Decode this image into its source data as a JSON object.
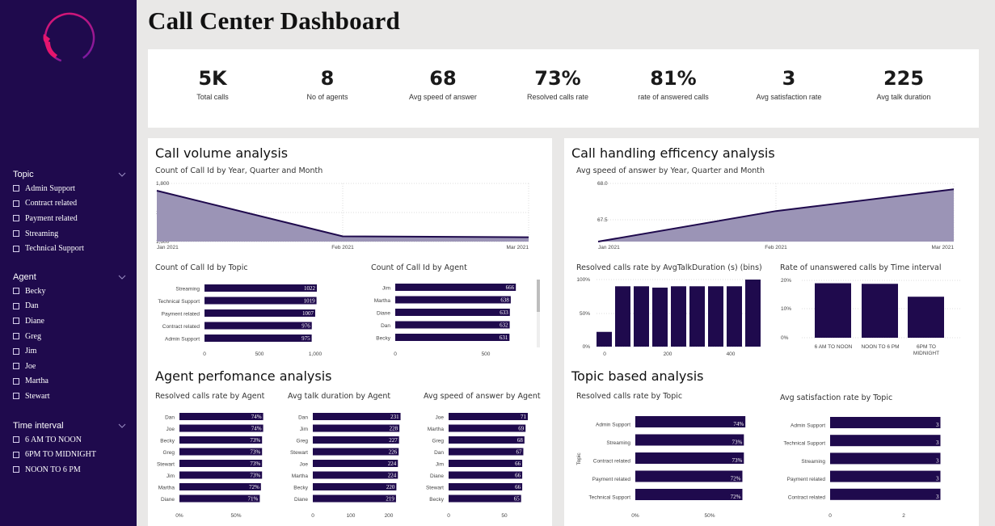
{
  "page": {
    "title": "Call Center Dashboard"
  },
  "colors": {
    "sidebar": "#1f0a4d",
    "bar": "#1f0a4d",
    "area": "#9b94b6",
    "line": "#1f0a4d",
    "logo_start": "#e6156e",
    "logo_end": "#6a1aa8"
  },
  "sidebar": {
    "logo_icon": "phone-ring-logo",
    "slicers": [
      {
        "title": "Topic",
        "items": [
          "Admin Support",
          "Contract related",
          "Payment related",
          "Streaming",
          "Technical Support"
        ]
      },
      {
        "title": "Agent",
        "items": [
          "Becky",
          "Dan",
          "Diane",
          "Greg",
          "Jim",
          "Joe",
          "Martha",
          "Stewart"
        ]
      },
      {
        "title": "Time interval",
        "items": [
          "6 AM TO NOON",
          "6PM TO MIDNIGHT",
          "NOON TO 6 PM"
        ]
      }
    ]
  },
  "kpis": [
    {
      "value": "5K",
      "label": "Total calls"
    },
    {
      "value": "8",
      "label": "No of agents"
    },
    {
      "value": "68",
      "label": "Avg speed of answer"
    },
    {
      "value": "73%",
      "label": "Resolved calls rate"
    },
    {
      "value": "81%",
      "label": "rate of answered calls"
    },
    {
      "value": "3",
      "label": "Avg satisfaction rate"
    },
    {
      "value": "225",
      "label": "Avg talk duration"
    }
  ],
  "sections": {
    "volume": "Call volume analysis",
    "efficiency": "Call handling efficency analysis",
    "agent": "Agent perfomance analysis",
    "topic": "Topic based analysis"
  },
  "chart_data": [
    {
      "id": "volume-trend",
      "type": "area",
      "title": "Count of Call Id by Year, Quarter and Month",
      "x": [
        "Jan 2021",
        "Feb 2021",
        "Mar 2021"
      ],
      "values": [
        1775,
        1618,
        1615
      ],
      "ylim": [
        1600,
        1800
      ],
      "yticks": [
        "1,800",
        "1,700",
        "1,600"
      ]
    },
    {
      "id": "calls-by-topic",
      "type": "bar",
      "title": "Count of Call Id by Topic",
      "categories": [
        "Streaming",
        "Technical Support",
        "Payment related",
        "Contract related",
        "Admin Support"
      ],
      "values": [
        1022,
        1019,
        1007,
        976,
        975
      ],
      "labels": [
        "1022",
        "1019",
        "1007",
        "976",
        "975"
      ],
      "xlim": [
        0,
        1000
      ],
      "xticks": [
        "0",
        "500",
        "1,000"
      ]
    },
    {
      "id": "calls-by-agent",
      "type": "bar",
      "title": "Count of Call Id by Agent",
      "categories": [
        "Jim",
        "Martha",
        "Diane",
        "Dan",
        "Becky"
      ],
      "values": [
        666,
        638,
        633,
        632,
        631
      ],
      "labels": [
        "666",
        "638",
        "633",
        "632",
        "631"
      ],
      "xlim": [
        0,
        600
      ],
      "xticks": [
        "0",
        "500"
      ]
    },
    {
      "id": "speed-trend",
      "type": "area",
      "title": "Avg speed of answer by Year, Quarter and Month",
      "x": [
        "Jan 2021",
        "Feb 2021",
        "Mar 2021"
      ],
      "values": [
        67.2,
        67.62,
        67.92
      ],
      "ylim": [
        67.2,
        68.0
      ],
      "yticks": [
        "68.0",
        "67.5"
      ]
    },
    {
      "id": "resolved-by-duration",
      "type": "bar",
      "title": "Resolved calls rate by AvgTalkDuration (s) (bins)",
      "x": [
        0,
        50,
        100,
        150,
        200,
        250,
        300,
        350,
        400
      ],
      "values": [
        0.22,
        0.9,
        0.9,
        0.88,
        0.9,
        0.9,
        0.9,
        0.9,
        1.0
      ],
      "yticks": [
        "100%",
        "50%",
        "0%"
      ],
      "xticks": [
        "0",
        "200",
        "400"
      ]
    },
    {
      "id": "unanswered-by-interval",
      "type": "bar",
      "title": "Rate of unanswered calls by Time interval",
      "categories": [
        "6 AM TO NOON",
        "NOON TO 6 PM",
        "6PM TO MIDNIGHT"
      ],
      "values": [
        0.19,
        0.188,
        0.143
      ],
      "yticks": [
        "20%",
        "10%",
        "0%"
      ]
    },
    {
      "id": "resolved-by-agent",
      "type": "bar",
      "title": "Resolved calls rate by Agent",
      "categories": [
        "Dan",
        "Joe",
        "Becky",
        "Greg",
        "Stewart",
        "Jim",
        "Martha",
        "Diane"
      ],
      "values": [
        0.74,
        0.74,
        0.73,
        0.73,
        0.73,
        0.73,
        0.72,
        0.71
      ],
      "labels": [
        "74%",
        "74%",
        "73%",
        "73%",
        "73%",
        "73%",
        "72%",
        "71%"
      ],
      "xticks": [
        "0%",
        "50%"
      ]
    },
    {
      "id": "talk-by-agent",
      "type": "bar",
      "title": "Avg talk duration by Agent",
      "categories": [
        "Dan",
        "Jim",
        "Greg",
        "Stewart",
        "Joe",
        "Martha",
        "Becky",
        "Diane"
      ],
      "values": [
        231,
        228,
        227,
        226,
        224,
        224,
        220,
        219
      ],
      "labels": [
        "231",
        "228",
        "227",
        "226",
        "224",
        "224",
        "220",
        "219"
      ],
      "xticks": [
        "0",
        "100",
        "200"
      ]
    },
    {
      "id": "speed-by-agent",
      "type": "bar",
      "title": "Avg speed of answer by Agent",
      "categories": [
        "Joe",
        "Martha",
        "Greg",
        "Dan",
        "Jim",
        "Diane",
        "Stewart",
        "Becky"
      ],
      "values": [
        71,
        69,
        68,
        67,
        66,
        66,
        66,
        65
      ],
      "labels": [
        "71",
        "69",
        "68",
        "67",
        "66",
        "66",
        "66",
        "65"
      ],
      "xticks": [
        "0",
        "50"
      ]
    },
    {
      "id": "resolved-by-topic",
      "type": "bar",
      "title": "Resolved calls rate by Topic",
      "ylabel": "Topic",
      "categories": [
        "Admin Support",
        "Streaming",
        "Contract related",
        "Payment related",
        "Technical Support"
      ],
      "values": [
        0.74,
        0.73,
        0.73,
        0.72,
        0.72
      ],
      "labels": [
        "74%",
        "73%",
        "73%",
        "72%",
        "72%"
      ],
      "xticks": [
        "0%",
        "50%"
      ]
    },
    {
      "id": "satisfaction-by-topic",
      "type": "bar",
      "title": "Avg satisfaction rate by Topic",
      "categories": [
        "Admin Support",
        "Technical Support",
        "Streaming",
        "Payment related",
        "Contract related"
      ],
      "values": [
        3,
        3,
        3,
        3,
        3
      ],
      "labels": [
        "3",
        "3",
        "3",
        "3",
        "3"
      ],
      "xticks": [
        "0",
        "2"
      ]
    }
  ]
}
